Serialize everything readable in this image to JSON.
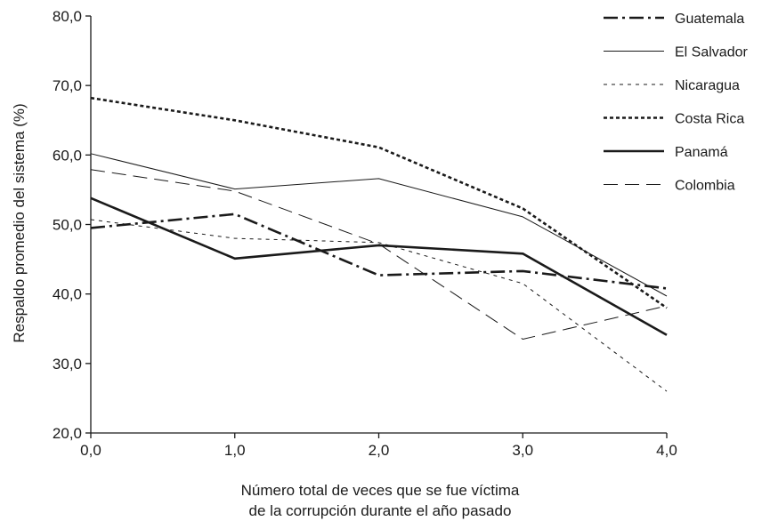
{
  "chart_data": {
    "type": "line",
    "xlabel": [
      "Número total de veces que se fue víctima",
      "de la corrupción durante el año pasado"
    ],
    "ylabel": "Respaldo promedio del sistema (%)",
    "x": [
      0,
      1,
      2,
      3,
      4
    ],
    "x_tick_labels": [
      "0,0",
      "1,0",
      "2,0",
      "3,0",
      "4,0"
    ],
    "y_tick_labels": [
      "20,0",
      "30,0",
      "40,0",
      "50,0",
      "60,0",
      "70,0",
      "80,0"
    ],
    "ylim": [
      20,
      80
    ],
    "xlim": [
      0,
      4
    ],
    "grid": false,
    "legend_position": "top-right",
    "series": [
      {
        "name": "Guatemala",
        "values": [
          49.5,
          51.5,
          42.7,
          43.3,
          40.8
        ],
        "style": "dashdot"
      },
      {
        "name": "El Salvador",
        "values": [
          60.2,
          55.1,
          56.6,
          51.1,
          39.7
        ],
        "style": "solid-thin"
      },
      {
        "name": "Nicaragua",
        "values": [
          50.7,
          48.0,
          47.4,
          41.5,
          26.0
        ],
        "style": "dotted-light"
      },
      {
        "name": "Costa Rica",
        "values": [
          68.2,
          65.0,
          61.1,
          52.3,
          38.0
        ],
        "style": "dotted-heavy"
      },
      {
        "name": "Panamá",
        "values": [
          53.8,
          45.1,
          47.0,
          45.8,
          34.1
        ],
        "style": "solid-thick"
      },
      {
        "name": "Colombia",
        "values": [
          57.9,
          54.8,
          47.2,
          33.5,
          38.3
        ],
        "style": "dashed"
      }
    ]
  }
}
